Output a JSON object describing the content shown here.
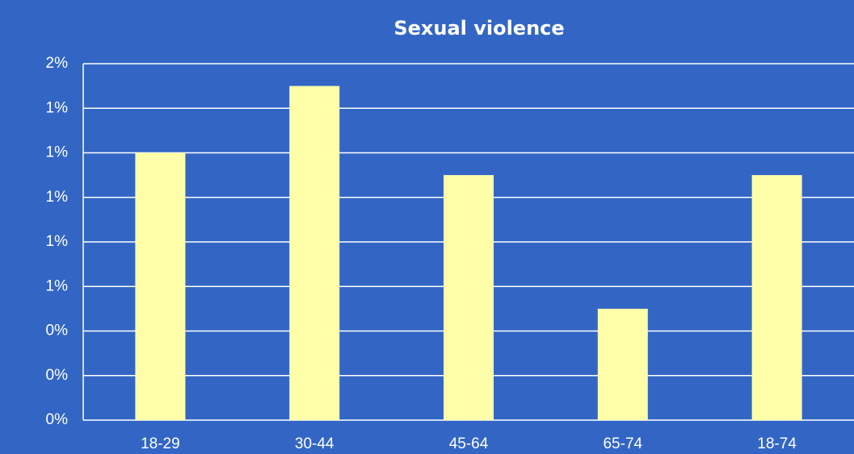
{
  "chart_data": {
    "type": "bar",
    "title": "Sexual violence",
    "categories": [
      "18-29",
      "30-44",
      "45-64",
      "65-74",
      "18-74"
    ],
    "values": [
      1.2,
      1.5,
      1.1,
      0.5,
      1.1
    ],
    "color": "#ffffaa",
    "ylim": [
      0,
      1.6
    ],
    "yticks": [
      {
        "value": 0,
        "label": "0%"
      },
      {
        "value": 0.2,
        "label": "0%"
      },
      {
        "value": 0.4,
        "label": "0%"
      },
      {
        "value": 0.6,
        "label": "1%"
      },
      {
        "value": 0.8,
        "label": "1%"
      },
      {
        "value": 1.0,
        "label": "1%"
      },
      {
        "value": 1.2,
        "label": "1%"
      },
      {
        "value": 1.4,
        "label": "1%"
      },
      {
        "value": 1.6,
        "label": "2%"
      }
    ],
    "grid": true
  }
}
